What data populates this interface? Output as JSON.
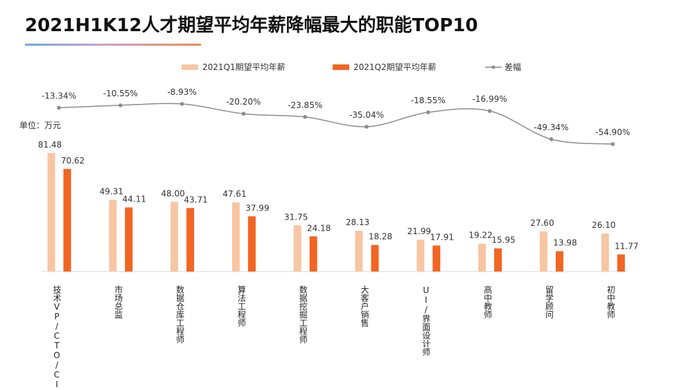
{
  "title": "2021H1K12人才期望平均年薪降幅最大的职能TOP10",
  "unit_label": "单位：万元",
  "legend": {
    "q1": "2021Q1期望平均年薪",
    "q2": "2021Q2期望平均年薪",
    "diff": "差幅"
  },
  "colors": {
    "q1": "#f7c6a3",
    "q2": "#f26522",
    "diff_line": "#8c8c8c",
    "underline_start": "#6fa8dc",
    "underline_end": "#f08a4b"
  },
  "chart_data": {
    "type": "bar",
    "title": "2021H1K12人才期望平均年薪降幅最大的职能TOP10",
    "ylabel": "单位：万元",
    "categories": [
      "技术VP/CTO/CIO",
      "市场总监",
      "数据仓库工程师",
      "算法工程师",
      "数据挖掘工程师",
      "大客户销售",
      "UI/界面设计师",
      "高中教师",
      "留学顾问",
      "初中教师"
    ],
    "series": [
      {
        "name": "2021Q1期望平均年薪",
        "type": "bar",
        "values": [
          81.48,
          49.31,
          48.0,
          47.61,
          31.75,
          28.13,
          21.99,
          19.22,
          27.6,
          26.1
        ]
      },
      {
        "name": "2021Q2期望平均年薪",
        "type": "bar",
        "values": [
          70.62,
          44.11,
          43.71,
          37.99,
          24.18,
          18.28,
          17.91,
          15.95,
          13.98,
          11.77
        ]
      },
      {
        "name": "差幅",
        "type": "line",
        "values": [
          -13.34,
          -10.55,
          -8.93,
          -20.2,
          -23.85,
          -35.04,
          -18.55,
          -16.99,
          -49.34,
          -54.9
        ],
        "labels": [
          "-13.34%",
          "-10.55%",
          "-8.93%",
          "-20.20%",
          "-23.85%",
          "-35.04%",
          "-18.55%",
          "-16.99%",
          "-49.34%",
          "-54.90%"
        ]
      }
    ],
    "legend_position": "top"
  }
}
